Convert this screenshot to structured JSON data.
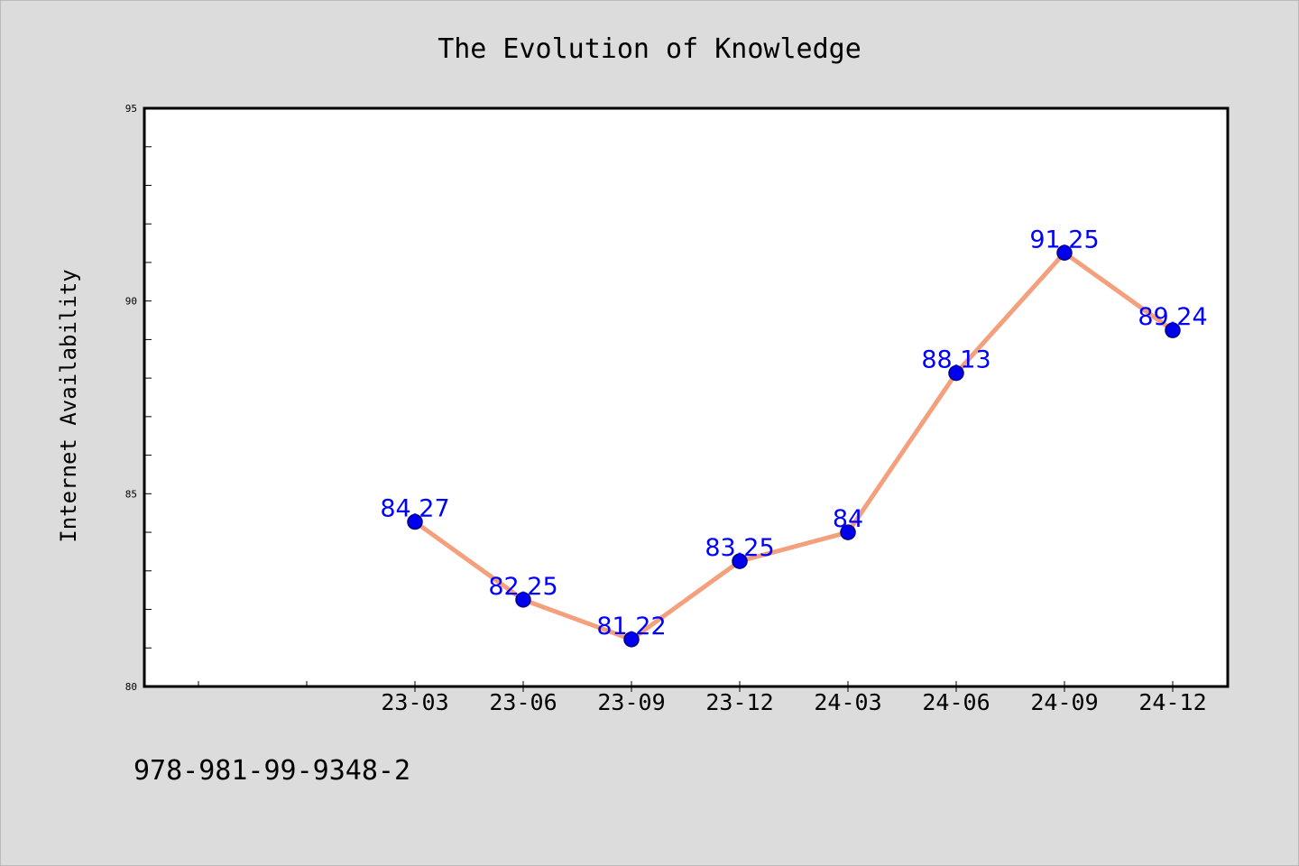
{
  "chart_data": {
    "type": "line",
    "title": "The Evolution of Knowledge",
    "xlabel": "",
    "ylabel": "Internet Availability",
    "categories": [
      "23-03",
      "23-06",
      "23-09",
      "23-12",
      "24-03",
      "24-06",
      "24-09",
      "24-12"
    ],
    "values": [
      84.27,
      82.25,
      81.22,
      83.25,
      84,
      88.13,
      91.25,
      89.24
    ],
    "data_labels": [
      "84.27",
      "82.25",
      "81.22",
      "83.25",
      "84",
      "88.13",
      "91.25",
      "89.24"
    ],
    "ylim": [
      80,
      95
    ],
    "y_major_ticks": [
      80,
      85,
      90,
      95
    ],
    "y_tick_labels": [
      "80",
      "85",
      "90",
      "95"
    ],
    "y_minor_step": 1,
    "grid": false,
    "legend": "none",
    "colors": {
      "line": "#f4a07c",
      "marker": "#0000ee",
      "marker_edge": "#000080",
      "data_label": "#0000ff",
      "plot_background": "#ffffff",
      "figure_background": "#dcdcdc"
    }
  },
  "footer_text": "978-981-99-9348-2"
}
